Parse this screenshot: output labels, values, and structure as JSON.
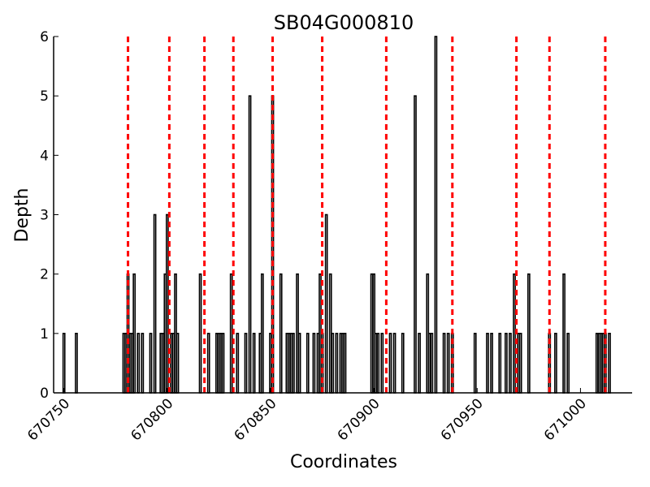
{
  "chart_data": {
    "type": "bar",
    "title": "SB04G000810",
    "xlabel": "Coordinates",
    "ylabel": "Depth",
    "xlim": [
      670745,
      671025
    ],
    "ylim": [
      0,
      6
    ],
    "xticks": [
      670750,
      670800,
      670850,
      670900,
      670950,
      671000
    ],
    "yticks": [
      0,
      1,
      2,
      3,
      4,
      5,
      6
    ],
    "grid": false,
    "bar_color": "#000000",
    "bar_fill": "#ffffff",
    "marker_line_color": "#ff0000",
    "x": [
      670750,
      670756,
      670779,
      670780,
      670781,
      670782,
      670783,
      670784,
      670786,
      670788,
      670792,
      670794,
      670797,
      670798,
      670799,
      670800,
      670802,
      670803,
      670804,
      670805,
      670816,
      670820,
      670824,
      670825,
      670826,
      670827,
      670831,
      670834,
      670838,
      670840,
      670842,
      670845,
      670846,
      670850,
      670851,
      670855,
      670858,
      670859,
      670860,
      670861,
      670863,
      670864,
      670868,
      670871,
      670873,
      670874,
      670875,
      670877,
      670879,
      670880,
      670882,
      670884,
      670885,
      670886,
      670899,
      670900,
      670901,
      670902,
      670904,
      670908,
      670910,
      670914,
      670920,
      670922,
      670926,
      670927,
      670928,
      670930,
      670934,
      670936,
      670938,
      670949,
      670955,
      670957,
      670961,
      670964,
      670966,
      670968,
      670970,
      670971,
      670975,
      670985,
      670988,
      670992,
      670994,
      671008,
      671009,
      671010,
      671011,
      671012,
      671014
    ],
    "values": [
      1,
      1,
      1,
      1,
      2,
      1,
      1,
      2,
      1,
      1,
      1,
      3,
      1,
      1,
      2,
      3,
      1,
      1,
      2,
      1,
      2,
      1,
      1,
      1,
      1,
      1,
      2,
      1,
      1,
      5,
      1,
      1,
      2,
      1,
      5,
      2,
      1,
      1,
      1,
      1,
      2,
      1,
      1,
      1,
      1,
      2,
      1,
      3,
      2,
      1,
      1,
      1,
      1,
      1,
      2,
      2,
      1,
      1,
      1,
      1,
      1,
      1,
      5,
      1,
      2,
      1,
      1,
      6,
      1,
      1,
      1,
      1,
      1,
      1,
      1,
      1,
      1,
      2,
      1,
      1,
      2,
      1,
      1,
      2,
      1,
      1,
      1,
      1,
      1,
      1,
      1
    ],
    "marker_lines": [
      670781,
      670801,
      670818,
      670832,
      670851,
      670875,
      670906,
      670938,
      670969,
      670985,
      671012
    ]
  }
}
